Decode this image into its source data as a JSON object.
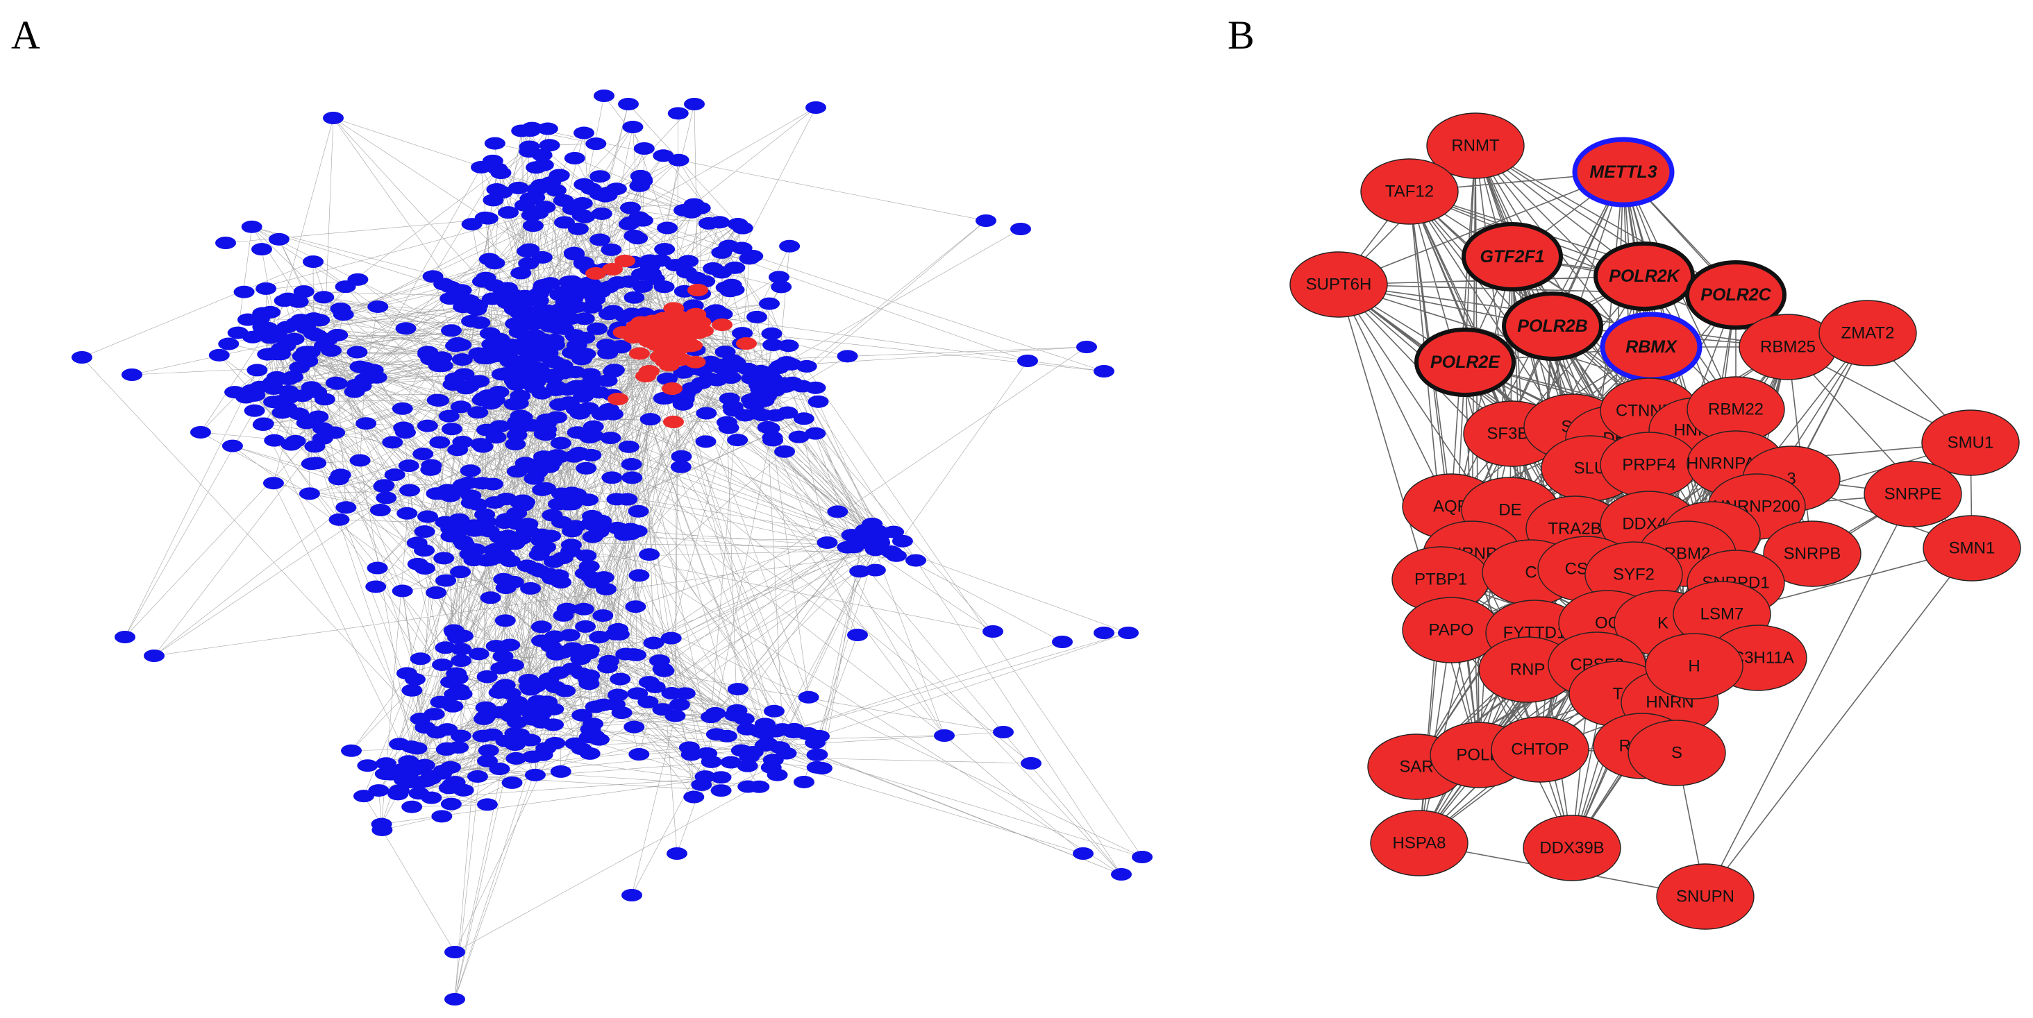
{
  "panels": {
    "a": {
      "label": "A"
    },
    "b": {
      "label": "B"
    }
  },
  "colors": {
    "blue_node": "#1010e8",
    "red_node": "#ee2b2b",
    "edge": "#555555",
    "black_outline": "#111111",
    "blue_outline": "#1a1aff"
  },
  "network_b": {
    "nodes": [
      {
        "id": "RNMT",
        "label": "RNMT"
      },
      {
        "id": "METTL3",
        "label": "METTL3",
        "highlight": "blue"
      },
      {
        "id": "TAF12",
        "label": "TAF12"
      },
      {
        "id": "GTF2F1",
        "label": "GTF2F1",
        "highlight": "black"
      },
      {
        "id": "POLR2K",
        "label": "POLR2K",
        "highlight": "black"
      },
      {
        "id": "POLR2C",
        "label": "POLR2C",
        "highlight": "black"
      },
      {
        "id": "SUPT6H",
        "label": "SUPT6H"
      },
      {
        "id": "POLR2B",
        "label": "POLR2B",
        "highlight": "black"
      },
      {
        "id": "RBMX",
        "label": "RBMX",
        "highlight": "blue"
      },
      {
        "id": "RBM25",
        "label": "RBM25"
      },
      {
        "id": "ZMAT2",
        "label": "ZMAT2"
      },
      {
        "id": "POLR2E",
        "label": "POLR2E",
        "highlight": "black"
      },
      {
        "id": "SF3B1",
        "label": "SF3B1"
      },
      {
        "id": "SR",
        "label": "SR"
      },
      {
        "id": "DB",
        "label": "DB"
      },
      {
        "id": "CTNNBL",
        "label": "CTNNBL"
      },
      {
        "id": "HNRN1",
        "label": "HNRN"
      },
      {
        "id": "RBM22",
        "label": "RBM22"
      },
      {
        "id": "SMU1",
        "label": "SMU1"
      },
      {
        "id": "SLU",
        "label": "SLU"
      },
      {
        "id": "PRPF4",
        "label": "PRPF4"
      },
      {
        "id": "HNRNPA2B1",
        "label": "HNRNPA2B1"
      },
      {
        "id": "N3",
        "label": "3"
      },
      {
        "id": "SNRPE",
        "label": "SNRPE"
      },
      {
        "id": "AQR",
        "label": "AQR"
      },
      {
        "id": "DE",
        "label": "DE"
      },
      {
        "id": "HNRNP200",
        "label": "HNRNP200"
      },
      {
        "id": "TRA2B",
        "label": "TRA2B"
      },
      {
        "id": "DDX42",
        "label": "DDX42"
      },
      {
        "id": "P",
        "label": "P"
      },
      {
        "id": "HNRNPL",
        "label": "HNRNPL"
      },
      {
        "id": "SNRPB",
        "label": "SNRPB"
      },
      {
        "id": "SMN1",
        "label": "SMN1"
      },
      {
        "id": "RBM2",
        "label": "RBM2"
      },
      {
        "id": "PTBP1",
        "label": "PTBP1"
      },
      {
        "id": "C",
        "label": "C"
      },
      {
        "id": "CSTF",
        "label": "CSTF"
      },
      {
        "id": "SYF2",
        "label": "SYF2"
      },
      {
        "id": "SNRPD1",
        "label": "SNRPD1"
      },
      {
        "id": "PAPO",
        "label": "PAPO"
      },
      {
        "id": "FYTTD1",
        "label": "FYTTD1"
      },
      {
        "id": "OC",
        "label": "OC"
      },
      {
        "id": "K",
        "label": "K"
      },
      {
        "id": "LSM7",
        "label": "LSM7"
      },
      {
        "id": "RNP",
        "label": "RNP"
      },
      {
        "id": "CPSF2",
        "label": "CPSF2"
      },
      {
        "id": "ZC3H11A",
        "label": "ZC3H11A"
      },
      {
        "id": "T",
        "label": "T"
      },
      {
        "id": "HNRN2",
        "label": "HNRN"
      },
      {
        "id": "HL",
        "label": "H"
      },
      {
        "id": "SAR",
        "label": "SAR"
      },
      {
        "id": "POLD",
        "label": "POLD"
      },
      {
        "id": "CHTOP",
        "label": "CHTOP"
      },
      {
        "id": "RBM5",
        "label": "RBM5"
      },
      {
        "id": "S",
        "label": "S"
      },
      {
        "id": "HSPA8",
        "label": "HSPA8"
      },
      {
        "id": "DDX39B",
        "label": "DDX39B"
      },
      {
        "id": "SNUPN",
        "label": "SNUPN"
      }
    ]
  }
}
